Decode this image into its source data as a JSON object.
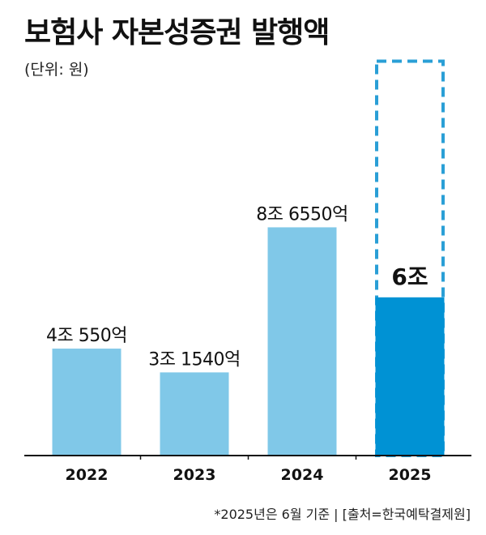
{
  "chart_data": {
    "type": "bar",
    "title": "보험사 자본성증권 발행액",
    "unit_label": "(단위: 원)",
    "categories": [
      "2022",
      "2023",
      "2024",
      "2025"
    ],
    "values": [
      4.055,
      3.154,
      8.655,
      6
    ],
    "value_labels": [
      "4조 550억",
      "3조 1540억",
      "8조 6550억",
      "6조"
    ],
    "ylim": [
      0,
      15
    ],
    "projection": {
      "category": "2025",
      "projected_value": 15,
      "style": "dashed-outline"
    },
    "highlight_category": "2025",
    "footnote": "*2025년은 6월 기준 | [출처=한국예탁결제원]",
    "grid": false,
    "legend": "none"
  },
  "colors": {
    "bar": "#80c8e8",
    "highlight": "#0092d4",
    "dashed_outline": "#2a9fd6",
    "axis": "#111111",
    "text": "#111111"
  }
}
